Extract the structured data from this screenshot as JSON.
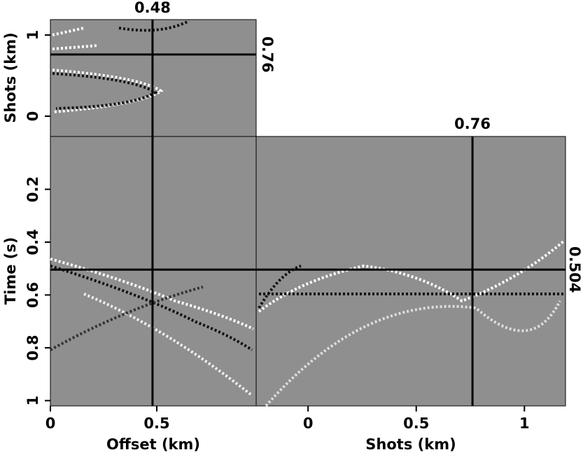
{
  "panels": {
    "front": {
      "xlabel": "Offset (km)",
      "ylabel": "Time (s)",
      "xlim": [
        0,
        0.967
      ],
      "ylim": [
        0,
        1.02
      ],
      "xticks": [
        0,
        0.5
      ],
      "yticks": [
        0.2,
        0.4,
        0.6,
        0.8,
        1
      ]
    },
    "side": {
      "xlabel": "Shots (km)",
      "xlim": [
        -0.24,
        1.19
      ],
      "xticks": [
        0,
        0.5,
        1
      ]
    },
    "top": {
      "ylabel": "Shots (km)",
      "ylim": [
        -0.25,
        1.19
      ],
      "yticks": [
        0,
        1
      ]
    }
  },
  "crosshair": {
    "offset": 0.48,
    "time": 0.504,
    "shots": 0.76
  }
}
